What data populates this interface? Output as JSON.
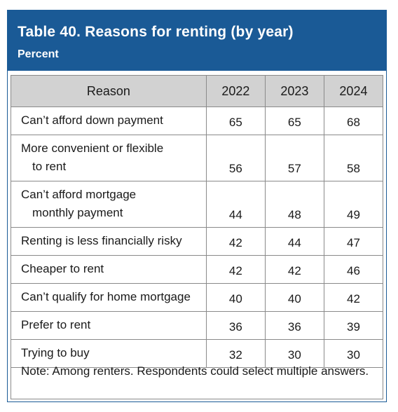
{
  "title": "Table 40. Reasons for renting (by year)",
  "subtitle": "Percent",
  "columns": [
    "Reason",
    "2022",
    "2023",
    "2024"
  ],
  "rows": [
    {
      "reason_line1": "Can’t afford down payment",
      "reason_line2": "",
      "values": [
        "65",
        "65",
        "68"
      ]
    },
    {
      "reason_line1": "More convenient or flexible",
      "reason_line2": "to rent",
      "values": [
        "56",
        "57",
        "58"
      ]
    },
    {
      "reason_line1": "Can’t afford mortgage",
      "reason_line2": "monthly payment",
      "values": [
        "44",
        "48",
        "49"
      ]
    },
    {
      "reason_line1": "Renting is less financially risky",
      "reason_line2": "",
      "values": [
        "42",
        "44",
        "47"
      ]
    },
    {
      "reason_line1": "Cheaper to rent",
      "reason_line2": "",
      "values": [
        "42",
        "42",
        "46"
      ]
    },
    {
      "reason_line1": "Can’t qualify for home mortgage",
      "reason_line2": "",
      "values": [
        "40",
        "40",
        "42"
      ]
    },
    {
      "reason_line1": "Prefer to rent",
      "reason_line2": "",
      "values": [
        "36",
        "36",
        "39"
      ]
    },
    {
      "reason_line1": "Trying to buy",
      "reason_line2": "",
      "values": [
        "32",
        "30",
        "30"
      ]
    }
  ],
  "note": "Note: Among renters. Respondents could select multiple answers.",
  "colors": {
    "header_bg": "#1a5a96",
    "column_header_bg": "#d2d2d2",
    "header_text": "#ffffff"
  }
}
